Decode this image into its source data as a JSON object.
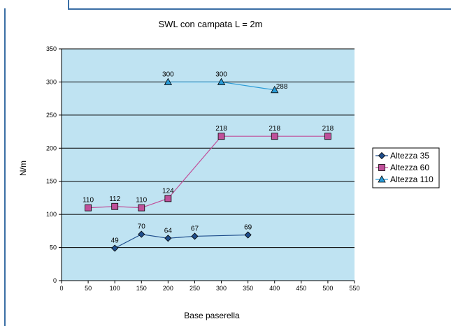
{
  "chart_data": {
    "type": "line",
    "title": "SWL con campata L = 2m",
    "xlabel": "Base paserella",
    "ylabel": "N/m",
    "xlim": [
      0,
      550
    ],
    "ylim": [
      0,
      350
    ],
    "x_ticks": [
      "0",
      "50",
      "100",
      "150",
      "200",
      "250",
      "300",
      "350",
      "400",
      "450",
      "500",
      "550"
    ],
    "y_ticks": [
      "0",
      "50",
      "100",
      "150",
      "200",
      "250",
      "300",
      "350"
    ],
    "grid": "horizontal",
    "legend_position": "right",
    "plot_background": "#bfe3f2",
    "series": [
      {
        "name": "Altezza 35",
        "color": "#1f4e8c",
        "marker": "diamond",
        "x": [
          100,
          150,
          200,
          250,
          350
        ],
        "y": [
          49,
          70,
          64,
          67,
          69
        ],
        "labels": [
          "49",
          "70",
          "64",
          "67",
          "69"
        ]
      },
      {
        "name": "Altezza 60",
        "color": "#c0509a",
        "marker": "square",
        "x": [
          50,
          100,
          150,
          200,
          300,
          400,
          500
        ],
        "y": [
          110,
          112,
          110,
          124,
          218,
          218,
          218
        ],
        "labels": [
          "110",
          "112",
          "110",
          "124",
          "218",
          "218",
          "218"
        ]
      },
      {
        "name": "Altezza 110",
        "color": "#2a9bd6",
        "marker": "triangle",
        "x": [
          200,
          300,
          400
        ],
        "y": [
          300,
          300,
          288
        ],
        "labels": [
          "300",
          "300",
          "288"
        ]
      }
    ]
  }
}
